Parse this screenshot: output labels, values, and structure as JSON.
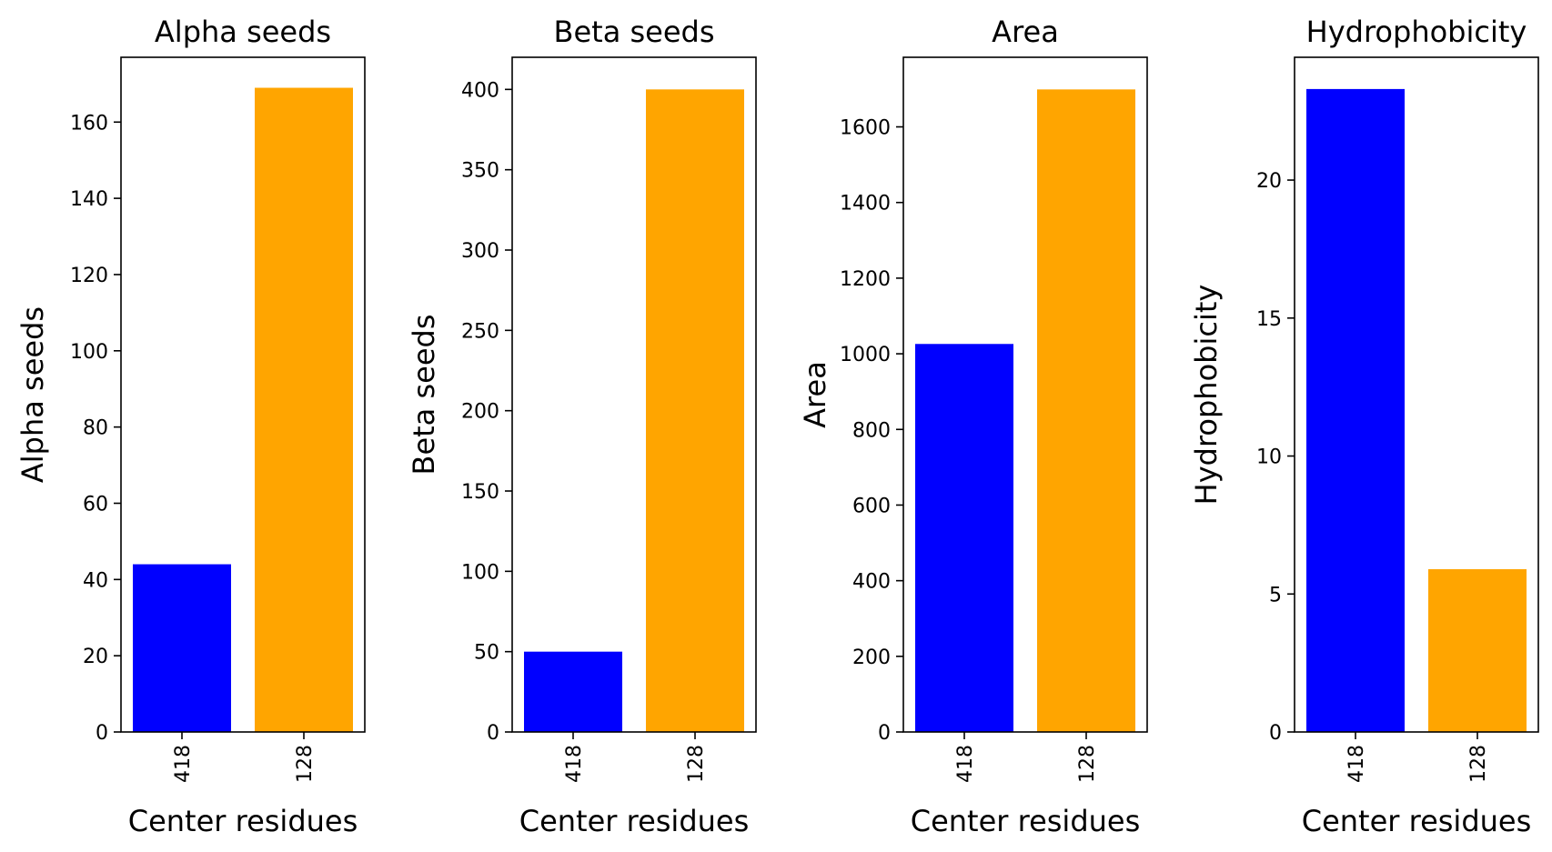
{
  "chart_data": [
    {
      "type": "bar",
      "title": "Alpha seeds",
      "xlabel": "Center residues",
      "ylabel": "Alpha seeds",
      "categories": [
        "418",
        "128"
      ],
      "values": [
        44,
        169
      ],
      "colors": [
        "#0000ff",
        "#ffa500"
      ],
      "ylim": [
        0,
        177
      ],
      "yticks": [
        0,
        20,
        40,
        60,
        80,
        100,
        120,
        140,
        160
      ],
      "grid": false
    },
    {
      "type": "bar",
      "title": "Beta seeds",
      "xlabel": "Center residues",
      "ylabel": "Beta seeds",
      "categories": [
        "418",
        "128"
      ],
      "values": [
        50,
        400
      ],
      "colors": [
        "#0000ff",
        "#ffa500"
      ],
      "ylim": [
        0,
        420
      ],
      "yticks": [
        0,
        50,
        100,
        150,
        200,
        250,
        300,
        350,
        400
      ],
      "grid": false
    },
    {
      "type": "bar",
      "title": "Area",
      "xlabel": "Center residues",
      "ylabel": "Area",
      "categories": [
        "418",
        "128"
      ],
      "values": [
        1026,
        1699
      ],
      "colors": [
        "#0000ff",
        "#ffa500"
      ],
      "ylim": [
        0,
        1784
      ],
      "yticks": [
        0,
        200,
        400,
        600,
        800,
        1000,
        1200,
        1400,
        1600
      ],
      "grid": false
    },
    {
      "type": "bar",
      "title": "Hydrophobicity",
      "xlabel": "Center residues",
      "ylabel": "Hydrophobicity",
      "categories": [
        "418",
        "128"
      ],
      "values": [
        23.3,
        5.9
      ],
      "colors": [
        "#0000ff",
        "#ffa500"
      ],
      "ylim": [
        0,
        24.45
      ],
      "yticks": [
        0,
        5,
        10,
        15,
        20
      ],
      "grid": false
    }
  ]
}
